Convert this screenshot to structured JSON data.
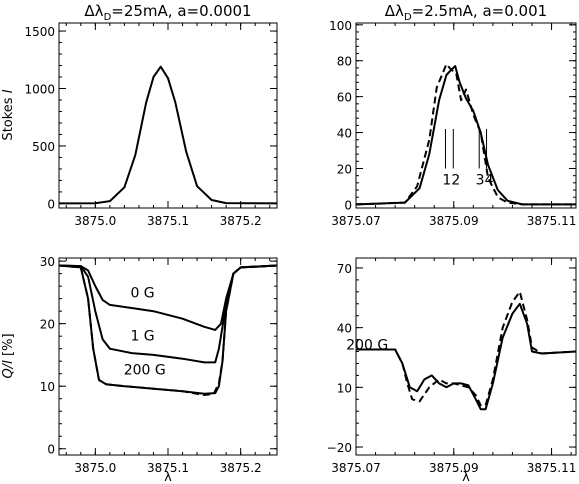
{
  "chart_data": [
    {
      "type": "line",
      "title": "Δλ_D=25mA, a=0.0001",
      "title_parts": [
        "Δλ",
        "D",
        "=25mA, a=0.0001"
      ],
      "ylabel": "Stokes I",
      "ylabel_parts": [
        "Stokes ",
        "I"
      ],
      "xlabel": "",
      "xlim": [
        3874.95,
        3875.25
      ],
      "ylim": [
        -40,
        1570
      ],
      "xticks": [
        3875.0,
        3875.1,
        3875.2
      ],
      "xtick_labels": [
        "3875.0",
        "3875.1",
        "3875.2"
      ],
      "yticks": [
        0,
        500,
        1000,
        1500
      ],
      "ytick_labels": [
        "0",
        "500",
        "1000",
        "1500"
      ],
      "grid": false,
      "series": [
        {
          "style": "solid",
          "x": [
            3874.95,
            3875.0,
            3875.02,
            3875.04,
            3875.055,
            3875.07,
            3875.08,
            3875.09,
            3875.1,
            3875.11,
            3875.125,
            3875.14,
            3875.16,
            3875.18,
            3875.25
          ],
          "y": [
            0,
            2,
            20,
            140,
            420,
            880,
            1100,
            1190,
            1090,
            880,
            450,
            150,
            30,
            3,
            0
          ]
        }
      ]
    },
    {
      "type": "line",
      "title": "Δλ_D=2.5mA, a=0.001",
      "title_parts": [
        "Δλ",
        "D",
        "=2.5mA, a=0.001"
      ],
      "ylabel": "",
      "xlabel": "",
      "xlim": [
        3875.07,
        3875.115
      ],
      "ylim": [
        -2,
        101
      ],
      "xticks": [
        3875.07,
        3875.09,
        3875.11
      ],
      "xtick_labels": [
        "3875.07",
        "3875.09",
        "3875.11"
      ],
      "yticks": [
        0,
        20,
        40,
        60,
        80,
        100
      ],
      "ytick_labels": [
        "0",
        "20",
        "40",
        "60",
        "80",
        "100"
      ],
      "grid": false,
      "annotations": [
        {
          "text": "12",
          "x": 3875.0895,
          "y": 11
        },
        {
          "text": "34",
          "x": 3875.0963,
          "y": 11
        }
      ],
      "marker_lines": [
        {
          "x": 3875.0883,
          "y0": 20,
          "y1": 42
        },
        {
          "x": 3875.0899,
          "y0": 20,
          "y1": 42
        },
        {
          "x": 3875.0952,
          "y0": 20,
          "y1": 42
        },
        {
          "x": 3875.0967,
          "y0": 20,
          "y1": 42
        }
      ],
      "series": [
        {
          "style": "solid",
          "x": [
            3875.07,
            3875.08,
            3875.083,
            3875.085,
            3875.087,
            3875.0885,
            3875.0895,
            3875.0903,
            3875.0912,
            3875.0925,
            3875.094,
            3875.0955,
            3875.097,
            3875.099,
            3875.101,
            3875.104,
            3875.115
          ],
          "y": [
            0,
            1,
            9,
            28,
            58,
            72,
            75,
            77,
            68,
            59,
            52,
            40,
            22,
            8,
            2,
            0,
            0
          ]
        },
        {
          "style": "dashed",
          "x": [
            3875.07,
            3875.08,
            3875.0825,
            3875.085,
            3875.0865,
            3875.0885,
            3875.0895,
            3875.0905,
            3875.0915,
            3875.0925,
            3875.094,
            3875.0955,
            3875.097,
            3875.099,
            3875.101,
            3875.104,
            3875.115
          ],
          "y": [
            0,
            1,
            10,
            36,
            65,
            78,
            75,
            73,
            58,
            64,
            50,
            40,
            15,
            4,
            1,
            0,
            0
          ]
        }
      ]
    },
    {
      "type": "line",
      "title": "",
      "ylabel": "Q/I [%]",
      "ylabel_parts": [
        "Q/I",
        " [%]"
      ],
      "xlabel": "λ",
      "xlim": [
        3874.95,
        3875.25
      ],
      "ylim": [
        -1,
        30.5
      ],
      "xticks": [
        3875.0,
        3875.1,
        3875.2
      ],
      "xtick_labels": [
        "3875.0",
        "3875.1",
        "3875.2"
      ],
      "yticks": [
        0,
        10,
        20,
        30
      ],
      "ytick_labels": [
        "0",
        "10",
        "20",
        "30"
      ],
      "grid": false,
      "annotations": [
        {
          "text": "0 G",
          "x": 3875.065,
          "y": 24.2
        },
        {
          "text": "1 G",
          "x": 3875.065,
          "y": 17.3
        },
        {
          "text": "200 G",
          "x": 3875.068,
          "y": 11.9
        }
      ],
      "series": [
        {
          "name": "0 G",
          "style": "solid",
          "x": [
            3874.95,
            3874.98,
            3874.99,
            3875.0,
            3875.01,
            3875.02,
            3875.05,
            3875.08,
            3875.12,
            3875.15,
            3875.165,
            3875.173,
            3875.18,
            3875.19,
            3875.2,
            3875.25
          ],
          "y": [
            29.3,
            29.2,
            28.5,
            26,
            23.8,
            23,
            22.5,
            22,
            20.8,
            19.5,
            19,
            20,
            24,
            28,
            29,
            29.3
          ]
        },
        {
          "name": "1 G",
          "style": "solid",
          "x": [
            3874.95,
            3874.98,
            3874.99,
            3875.0,
            3875.01,
            3875.02,
            3875.05,
            3875.08,
            3875.12,
            3875.15,
            3875.165,
            3875.17,
            3875.18,
            3875.19,
            3875.2,
            3875.25
          ],
          "y": [
            29.3,
            29.2,
            27.5,
            22,
            17.5,
            16,
            15.3,
            15,
            14.4,
            13.8,
            13.8,
            16,
            23,
            28,
            29,
            29.3
          ]
        },
        {
          "name": "200 G",
          "style": "solid",
          "x": [
            3874.95,
            3874.98,
            3874.99,
            3874.997,
            3875.005,
            3875.015,
            3875.04,
            3875.08,
            3875.12,
            3875.15,
            3875.165,
            3875.17,
            3875.175,
            3875.18,
            3875.19,
            3875.2,
            3875.25
          ],
          "y": [
            29.3,
            29,
            24,
            16,
            11,
            10.3,
            10,
            9.6,
            9.2,
            8.8,
            8.9,
            10,
            14,
            22,
            28,
            29,
            29.3
          ]
        },
        {
          "style": "dashed",
          "x": [
            3874.95,
            3874.98,
            3874.99,
            3874.997,
            3875.005,
            3875.015,
            3875.04,
            3875.08,
            3875.12,
            3875.15,
            3875.163,
            3875.17,
            3875.175,
            3875.18,
            3875.19,
            3875.2,
            3875.25
          ],
          "y": [
            29.3,
            29,
            24,
            16,
            11,
            10.3,
            10,
            9.6,
            9.2,
            8.6,
            8.8,
            10.5,
            14,
            22,
            28,
            29,
            29.3
          ]
        }
      ]
    },
    {
      "type": "line",
      "title": "",
      "ylabel": "",
      "xlabel": "λ",
      "xlim": [
        3875.07,
        3875.115
      ],
      "ylim": [
        -24,
        75
      ],
      "xticks": [
        3875.07,
        3875.09,
        3875.11
      ],
      "xtick_labels": [
        "3875.07",
        "3875.09",
        "3875.11"
      ],
      "yticks": [
        -20,
        10,
        40,
        70
      ],
      "ytick_labels": [
        "−20",
        "10",
        "40",
        "70"
      ],
      "grid": false,
      "annotations": [
        {
          "text": "200 G",
          "x": 3875.0723,
          "y": 29
        }
      ],
      "series": [
        {
          "name": "200 G",
          "style": "solid",
          "x": [
            3875.07,
            3875.078,
            3875.0795,
            3875.081,
            3875.0825,
            3875.084,
            3875.0855,
            3875.087,
            3875.0885,
            3875.09,
            3875.0915,
            3875.093,
            3875.0945,
            3875.0955,
            3875.0965,
            3875.098,
            3875.1,
            3875.102,
            3875.1035,
            3875.105,
            3875.106,
            3875.108,
            3875.115
          ],
          "y": [
            29,
            29,
            22,
            10,
            8,
            14,
            16,
            12,
            10,
            12,
            12,
            11,
            4,
            -1,
            -1,
            12,
            35,
            47,
            52,
            42,
            28,
            27,
            28
          ]
        },
        {
          "style": "dashed",
          "x": [
            3875.07,
            3875.078,
            3875.0795,
            3875.0805,
            3875.0815,
            3875.083,
            3875.085,
            3875.087,
            3875.0885,
            3875.09,
            3875.0915,
            3875.093,
            3875.0945,
            3875.0955,
            3875.0965,
            3875.098,
            3875.1,
            3875.102,
            3875.1035,
            3875.105,
            3875.106,
            3875.108,
            3875.115
          ],
          "y": [
            29,
            29,
            22,
            12,
            4,
            3,
            10,
            14,
            12,
            12,
            11,
            10,
            6,
            1,
            1,
            14,
            40,
            53,
            58,
            44,
            30,
            27,
            28
          ]
        }
      ]
    }
  ]
}
